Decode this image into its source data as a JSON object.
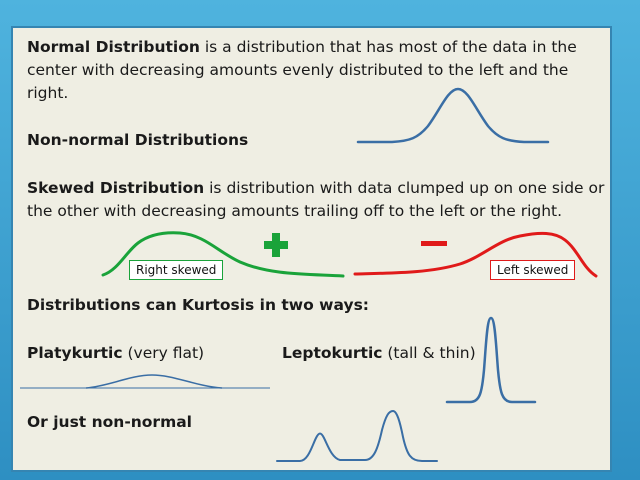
{
  "normal": {
    "term": "Normal Distribution",
    "line1_rest": " is a distribution that has most of the data in the",
    "line2": "center with decreasing amounts evenly distributed to the left and the",
    "line3": "right."
  },
  "non_normal_heading": "Non-normal Distributions",
  "skewed": {
    "term": "Skewed Distribution",
    "line1_rest": " is distribution with data clumped up on one side or",
    "line2": "the other with decreasing amounts trailing off to the left or the right.",
    "right_label": "Right skewed",
    "left_label": "Left skewed",
    "plus_sign": "+",
    "minus_sign": "–"
  },
  "kurtosis_heading": "Distributions can  Kurtosis in two ways:",
  "platykurtic": {
    "term": "Platykurtic",
    "desc": " (very flat)"
  },
  "leptokurtic": {
    "term": "Leptokurtic",
    "desc": " (tall & thin)"
  },
  "just_non_normal": "Or just non-normal",
  "colors": {
    "curve_blue": "#3a6ea5",
    "right_skew_green": "#1aa33a",
    "left_skew_red": "#e01a1a",
    "plus_green": "#1aa33a",
    "minus_red": "#e01a1a",
    "slide_bg": "#efeee3",
    "frame_blue": "#3a9fcf"
  }
}
